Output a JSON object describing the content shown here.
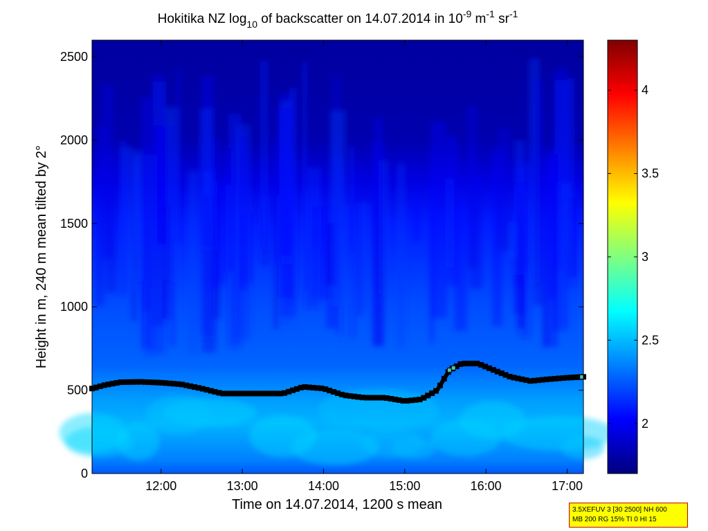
{
  "title": {
    "part1": "Hokitika NZ log",
    "sub": "10",
    "part2": " of backscatter on 14.07.2014 in 10",
    "sup1": "-9",
    "part3": " m",
    "sup2": "-1",
    "part4": " sr",
    "sup3": "-1"
  },
  "info_box": {
    "line1": "3.5XEFUV 3 [30 2500] NH 600",
    "line2": "MB 200 RG 15% TI 0 HI 15"
  },
  "colors": {
    "layer_top": "#1a2aa6",
    "layer_marker": "#000000",
    "marker_fill": "#4fc4a8"
  },
  "chart_data": {
    "type": "heatmap",
    "xlabel": "Time on 14.07.2014, 1200 s mean",
    "ylabel": "Height in m, 240 m mean tilted by 2°",
    "x_ticks": [
      "12:00",
      "13:00",
      "14:00",
      "15:00",
      "16:00",
      "17:00"
    ],
    "x_tick_values": [
      12.0,
      13.0,
      14.0,
      15.0,
      16.0,
      17.0
    ],
    "y_ticks": [
      "0",
      "500",
      "1000",
      "1500",
      "2000",
      "2500"
    ],
    "y_tick_values": [
      0,
      500,
      1000,
      1500,
      2000,
      2500
    ],
    "xlim": [
      11.15,
      17.2
    ],
    "ylim": [
      0,
      2600
    ],
    "colorbar": {
      "ticks": [
        "2",
        "2.5",
        "3",
        "3.5",
        "4"
      ],
      "tick_values": [
        2,
        2.5,
        3,
        3.5,
        4
      ],
      "range": [
        1.7,
        4.3
      ],
      "colormap": "jet"
    },
    "background_profile": [
      {
        "height": 0,
        "value": 2.25
      },
      {
        "height": 80,
        "value": 2.35
      },
      {
        "height": 300,
        "value": 2.48
      },
      {
        "height": 450,
        "value": 2.42
      },
      {
        "height": 650,
        "value": 2.28
      },
      {
        "height": 1000,
        "value": 2.22
      },
      {
        "height": 1500,
        "value": 2.1
      },
      {
        "height": 1750,
        "value": 1.95
      },
      {
        "height": 2000,
        "value": 1.82
      },
      {
        "height": 2600,
        "value": 1.78
      }
    ],
    "layer_height": {
      "x": [
        11.15,
        11.3,
        11.5,
        11.75,
        12.0,
        12.25,
        12.5,
        12.75,
        13.0,
        13.25,
        13.5,
        13.75,
        14.0,
        14.25,
        14.5,
        14.75,
        15.0,
        15.2,
        15.4,
        15.55,
        15.7,
        15.9,
        16.1,
        16.3,
        16.55,
        16.75,
        17.0,
        17.2
      ],
      "y": [
        510,
        530,
        548,
        550,
        545,
        535,
        510,
        480,
        480,
        480,
        480,
        520,
        510,
        470,
        455,
        455,
        435,
        445,
        500,
        620,
        660,
        660,
        620,
        580,
        555,
        565,
        575,
        580
      ]
    }
  }
}
